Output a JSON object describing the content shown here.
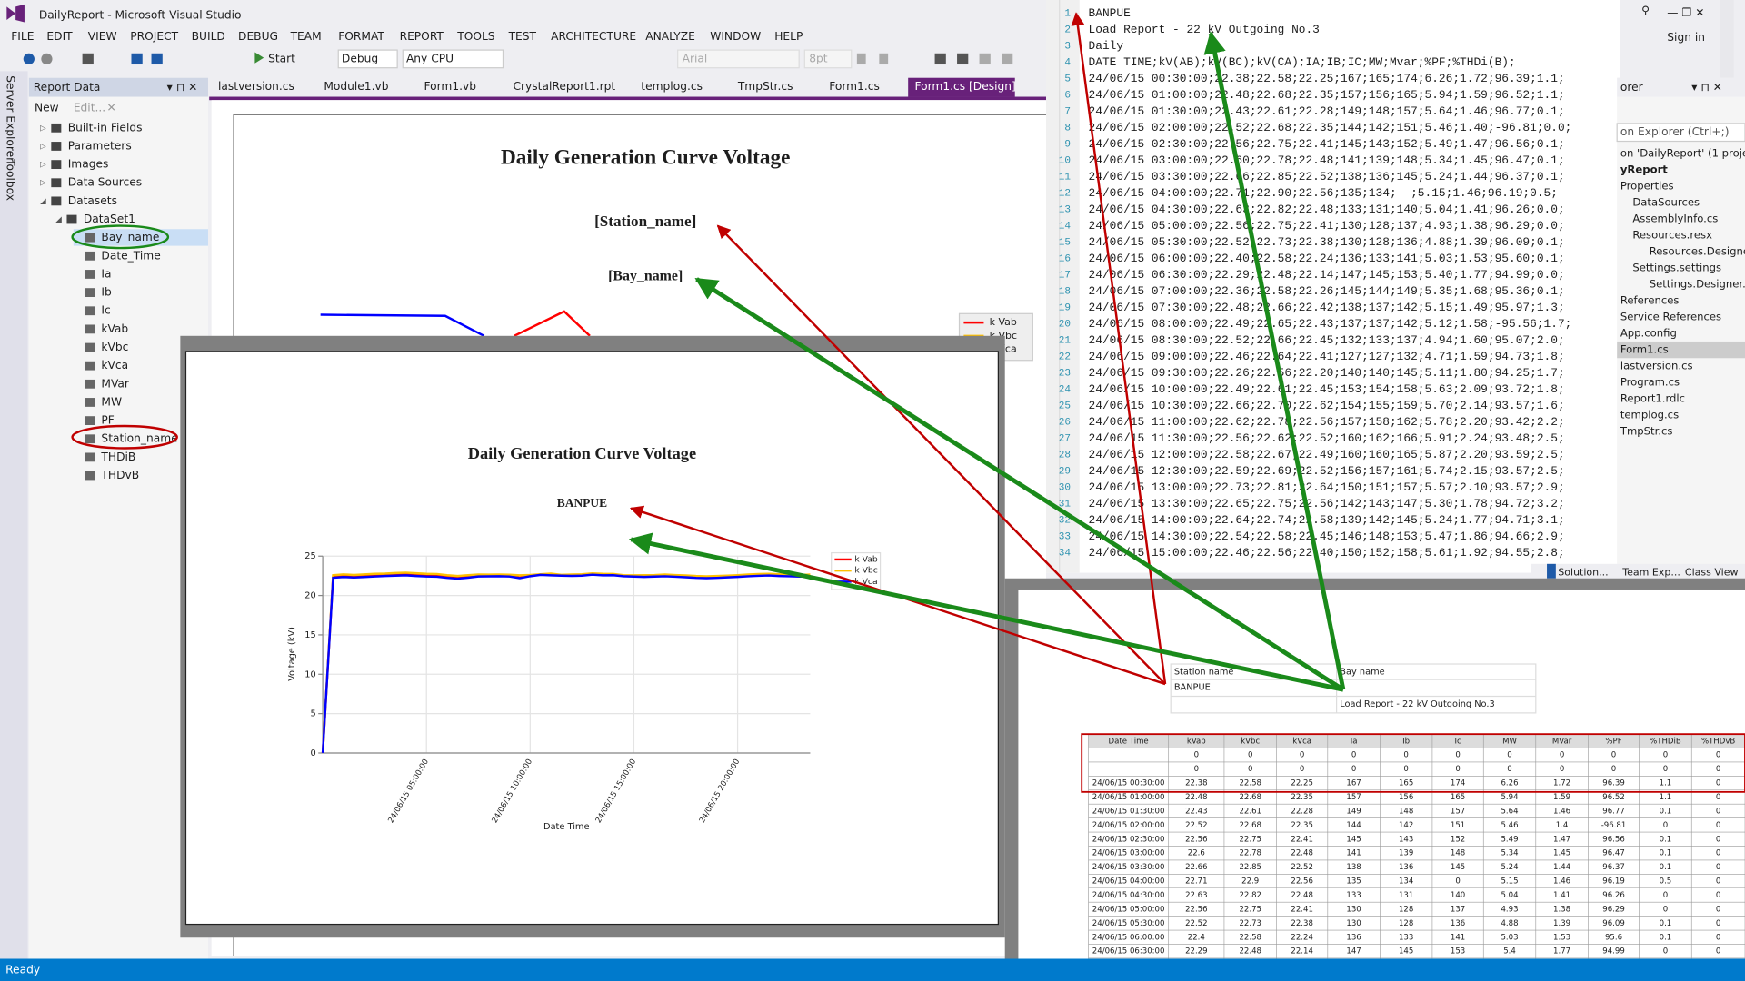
{
  "title_bar": {
    "app_title": "DailyReport - Microsoft Visual Studio",
    "sign_in": "Sign in"
  },
  "menu": [
    "FILE",
    "EDIT",
    "VIEW",
    "PROJECT",
    "BUILD",
    "DEBUG",
    "TEAM",
    "FORMAT",
    "REPORT",
    "TOOLS",
    "TEST",
    "ARCHITECTURE",
    "ANALYZE",
    "WINDOW",
    "HELP"
  ],
  "toolbar": {
    "start": "Start",
    "config": "Debug",
    "platform": "Any CPU",
    "font": "Arial",
    "size": "8pt"
  },
  "side_tabs": [
    "Server Explorer",
    "Toolbox"
  ],
  "report_data": {
    "title": "Report Data",
    "new": "New",
    "edit": "Edit...",
    "items": [
      "Built-in Fields",
      "Parameters",
      "Images",
      "Data Sources",
      "Datasets",
      "DataSet1",
      "Bay_name",
      "Date_Time",
      "Ia",
      "Ib",
      "Ic",
      "kVab",
      "kVbc",
      "kVca",
      "MVar",
      "MW",
      "PF",
      "Station_name",
      "THDiB",
      "THDvB"
    ]
  },
  "tabs": [
    "lastversion.cs",
    "Module1.vb",
    "Form1.vb",
    "CrystalReport1.rpt",
    "templog.cs",
    "TmpStr.cs",
    "Form1.cs",
    "Form1.cs [Design]"
  ],
  "designer": {
    "title": "Daily Generation Curve Voltage",
    "station": "[Station_name]",
    "bay": "[Bay_name]",
    "legend": [
      "k Vab",
      "k Vbc",
      "Vca"
    ]
  },
  "chart_data": {
    "type": "line",
    "title": "Daily Generation Curve Voltage",
    "subtitle": "BANPUE",
    "x_label": "Date Time",
    "y_label": "Voltage (kV)",
    "categories": [
      null,
      null,
      null,
      null,
      null,
      null,
      null,
      null,
      null,
      null,
      "24/06/15 05:00:00",
      null,
      null,
      null,
      null,
      null,
      null,
      null,
      null,
      null,
      "24/06/15 10:00:00",
      null,
      null,
      null,
      null,
      null,
      null,
      null,
      null,
      null,
      "24/06/15 15:00:00",
      null,
      null,
      null,
      null,
      null,
      null,
      null,
      null,
      null,
      "24/06/15 20:00:00",
      null,
      null,
      null,
      null,
      null,
      null,
      null
    ],
    "series": [
      {
        "name": "k Vab",
        "color": "#ff0000",
        "values": [
          0,
          22.38,
          22.48,
          22.43,
          22.52,
          22.56,
          22.6,
          22.66,
          22.71,
          22.63,
          22.56,
          22.52,
          22.4,
          22.29,
          22.36,
          22.48,
          22.49,
          22.52,
          22.46,
          22.26,
          22.49,
          22.66,
          22.62,
          22.56,
          22.58,
          22.59,
          22.73,
          22.65,
          22.64,
          22.54,
          22.46,
          22.42,
          22.45,
          22.5,
          22.44,
          22.38,
          22.3,
          22.26,
          22.3,
          22.36,
          22.42,
          22.5,
          22.56,
          22.6,
          22.55,
          22.5,
          22.46,
          22.5
        ]
      },
      {
        "name": "k Vbc",
        "color": "#ffc000",
        "values": [
          0,
          22.58,
          22.68,
          22.61,
          22.68,
          22.75,
          22.78,
          22.85,
          22.9,
          22.82,
          22.75,
          22.73,
          22.58,
          22.48,
          22.58,
          22.66,
          22.65,
          22.66,
          22.64,
          22.56,
          22.61,
          22.7,
          22.78,
          22.62,
          22.67,
          22.69,
          22.81,
          22.75,
          22.74,
          22.58,
          22.56,
          22.58,
          22.6,
          22.66,
          22.6,
          22.55,
          22.48,
          22.44,
          22.48,
          22.52,
          22.58,
          22.66,
          22.72,
          22.76,
          22.7,
          22.66,
          22.62,
          22.66
        ]
      },
      {
        "name": "k Vca",
        "color": "#0000ff",
        "values": [
          0,
          22.25,
          22.35,
          22.28,
          22.35,
          22.41,
          22.48,
          22.52,
          22.56,
          22.48,
          22.41,
          22.38,
          22.24,
          22.14,
          22.26,
          22.42,
          22.43,
          22.45,
          22.41,
          22.2,
          22.45,
          22.62,
          22.56,
          22.52,
          22.49,
          22.52,
          22.64,
          22.56,
          22.58,
          22.45,
          22.4,
          22.36,
          22.4,
          22.44,
          22.38,
          22.32,
          22.24,
          22.2,
          22.24,
          22.3,
          22.36,
          22.44,
          22.5,
          22.54,
          22.48,
          22.44,
          22.4,
          22.44
        ]
      }
    ],
    "ylim": [
      0,
      25
    ],
    "yticks": [
      0,
      5,
      10,
      15,
      20,
      25
    ],
    "grid": true,
    "legend": "upper right"
  },
  "code": {
    "line_numbers": [
      1,
      2,
      3,
      4,
      5,
      6,
      7,
      8,
      9,
      10,
      11,
      12,
      13,
      14,
      15,
      16,
      17,
      18,
      19,
      20,
      21,
      22,
      23,
      24,
      25,
      26,
      27,
      28,
      29,
      30,
      31,
      32,
      33,
      34
    ],
    "lines": [
      "BANPUE",
      "Load Report - 22 kV Outgoing No.3",
      "Daily",
      "DATE  TIME;kV(AB);kV(BC);kV(CA);IA;IB;IC;MW;Mvar;%PF;%THDi(B);",
      "24/06/15 00:30:00;22.38;22.58;22.25;167;165;174;6.26;1.72;96.39;1.1;",
      "24/06/15 01:00:00;22.48;22.68;22.35;157;156;165;5.94;1.59;96.52;1.1;",
      "24/06/15 01:30:00;22.43;22.61;22.28;149;148;157;5.64;1.46;96.77;0.1;",
      "24/06/15 02:00:00;22.52;22.68;22.35;144;142;151;5.46;1.40;-96.81;0.0;",
      "24/06/15 02:30:00;22.56;22.75;22.41;145;143;152;5.49;1.47;96.56;0.1;",
      "24/06/15 03:00:00;22.60;22.78;22.48;141;139;148;5.34;1.45;96.47;0.1;",
      "24/06/15 03:30:00;22.66;22.85;22.52;138;136;145;5.24;1.44;96.37;0.1;",
      "24/06/15 04:00:00;22.71;22.90;22.56;135;134;--;5.15;1.46;96.19;0.5;",
      "24/06/15 04:30:00;22.63;22.82;22.48;133;131;140;5.04;1.41;96.26;0.0;",
      "24/06/15 05:00:00;22.56;22.75;22.41;130;128;137;4.93;1.38;96.29;0.0;",
      "24/06/15 05:30:00;22.52;22.73;22.38;130;128;136;4.88;1.39;96.09;0.1;",
      "24/06/15 06:00:00;22.40;22.58;22.24;136;133;141;5.03;1.53;95.60;0.1;",
      "24/06/15 06:30:00;22.29;22.48;22.14;147;145;153;5.40;1.77;94.99;0.0;",
      "24/06/15 07:00:00;22.36;22.58;22.26;145;144;149;5.35;1.68;95.36;0.1;",
      "24/06/15 07:30:00;22.48;22.66;22.42;138;137;142;5.15;1.49;95.97;1.3;",
      "24/06/15 08:00:00;22.49;22.65;22.43;137;137;142;5.12;1.58;-95.56;1.7;",
      "24/06/15 08:30:00;22.52;22.66;22.45;132;133;137;4.94;1.60;95.07;2.0;",
      "24/06/15 09:00:00;22.46;22.64;22.41;127;127;132;4.71;1.59;94.73;1.8;",
      "24/06/15 09:30:00;22.26;22.56;22.20;140;140;145;5.11;1.80;94.25;1.7;",
      "24/06/15 10:00:00;22.49;22.61;22.45;153;154;158;5.63;2.09;93.72;1.8;",
      "24/06/15 10:30:00;22.66;22.70;22.62;154;155;159;5.70;2.14;93.57;1.6;",
      "24/06/15 11:00:00;22.62;22.78;22.56;157;158;162;5.78;2.20;93.42;2.2;",
      "24/06/15 11:30:00;22.56;22.62;22.52;160;162;166;5.91;2.24;93.48;2.5;",
      "24/06/15 12:00:00;22.58;22.67;22.49;160;160;165;5.87;2.20;93.59;2.5;",
      "24/06/15 12:30:00;22.59;22.69;22.52;156;157;161;5.74;2.15;93.57;2.5;",
      "24/06/15 13:00:00;22.73;22.81;22.64;150;151;157;5.57;2.10;93.57;2.9;",
      "24/06/15 13:30:00;22.65;22.75;22.56;142;143;147;5.30;1.78;94.72;3.2;",
      "24/06/15 14:00:00;22.64;22.74;22.58;139;142;145;5.24;1.77;94.71;3.1;",
      "24/06/15 14:30:00;22.54;22.58;22.45;146;148;153;5.47;1.86;94.66;2.9;",
      "24/06/15 15:00:00;22.46;22.56;22.40;150;152;158;5.61;1.92;94.55;2.8;"
    ]
  },
  "solution_explorer": {
    "header": "orer",
    "search": "on Explorer (Ctrl+;)",
    "items": [
      "on 'DailyReport' (1 project)",
      "yReport",
      "Properties",
      "DataSources",
      "AssemblyInfo.cs",
      "Resources.resx",
      "Resources.Designe",
      "Settings.settings",
      "Settings.Designer.c",
      "References",
      "Service References",
      "App.config",
      "Form1.cs",
      "lastversion.cs",
      "Program.cs",
      "Report1.rdlc",
      "templog.cs",
      "TmpStr.cs"
    ],
    "bottom_tabs": [
      "Solution...",
      "Team Exp...",
      "Class View"
    ]
  },
  "report_info": {
    "station_label": "Station name",
    "station": "BANPUE",
    "bay_label": "Bay name",
    "bay": "Load Report - 22 kV Outgoing No.3"
  },
  "table": {
    "headers": [
      "Date Time",
      "kVab",
      "kVbc",
      "kVca",
      "Ia",
      "Ib",
      "Ic",
      "MW",
      "MVar",
      "%PF",
      "%THDiB",
      "%THDvB"
    ],
    "rows": [
      [
        "0",
        "0",
        "0",
        "0",
        "0",
        "0",
        "0",
        "0",
        "0",
        "0",
        "0"
      ],
      [
        "0",
        "0",
        "0",
        "0",
        "0",
        "0",
        "0",
        "0",
        "0",
        "0",
        "0"
      ],
      [
        "24/06/15 00:30:00",
        "22.38",
        "22.58",
        "22.25",
        "167",
        "165",
        "174",
        "6.26",
        "1.72",
        "96.39",
        "1.1",
        "0"
      ],
      [
        "24/06/15 01:00:00",
        "22.48",
        "22.68",
        "22.35",
        "157",
        "156",
        "165",
        "5.94",
        "1.59",
        "96.52",
        "1.1",
        "0"
      ],
      [
        "24/06/15 01:30:00",
        "22.43",
        "22.61",
        "22.28",
        "149",
        "148",
        "157",
        "5.64",
        "1.46",
        "96.77",
        "0.1",
        "0"
      ],
      [
        "24/06/15 02:00:00",
        "22.52",
        "22.68",
        "22.35",
        "144",
        "142",
        "151",
        "5.46",
        "1.4",
        "-96.81",
        "0",
        "0"
      ],
      [
        "24/06/15 02:30:00",
        "22.56",
        "22.75",
        "22.41",
        "145",
        "143",
        "152",
        "5.49",
        "1.47",
        "96.56",
        "0.1",
        "0"
      ],
      [
        "24/06/15 03:00:00",
        "22.6",
        "22.78",
        "22.48",
        "141",
        "139",
        "148",
        "5.34",
        "1.45",
        "96.47",
        "0.1",
        "0"
      ],
      [
        "24/06/15 03:30:00",
        "22.66",
        "22.85",
        "22.52",
        "138",
        "136",
        "145",
        "5.24",
        "1.44",
        "96.37",
        "0.1",
        "0"
      ],
      [
        "24/06/15 04:00:00",
        "22.71",
        "22.9",
        "22.56",
        "135",
        "134",
        "0",
        "5.15",
        "1.46",
        "96.19",
        "0.5",
        "0"
      ],
      [
        "24/06/15 04:30:00",
        "22.63",
        "22.82",
        "22.48",
        "133",
        "131",
        "140",
        "5.04",
        "1.41",
        "96.26",
        "0",
        "0"
      ],
      [
        "24/06/15 05:00:00",
        "22.56",
        "22.75",
        "22.41",
        "130",
        "128",
        "137",
        "4.93",
        "1.38",
        "96.29",
        "0",
        "0"
      ],
      [
        "24/06/15 05:30:00",
        "22.52",
        "22.73",
        "22.38",
        "130",
        "128",
        "136",
        "4.88",
        "1.39",
        "96.09",
        "0.1",
        "0"
      ],
      [
        "24/06/15 06:00:00",
        "22.4",
        "22.58",
        "22.24",
        "136",
        "133",
        "141",
        "5.03",
        "1.53",
        "95.6",
        "0.1",
        "0"
      ],
      [
        "24/06/15 06:30:00",
        "22.29",
        "22.48",
        "22.14",
        "147",
        "145",
        "153",
        "5.4",
        "1.77",
        "94.99",
        "0",
        "0"
      ],
      [
        "24/06/15 07:00:00",
        "22.36",
        "22.58",
        "22.26",
        "145",
        "144",
        "149",
        "5.35",
        "1.68",
        "95.36",
        "0.1",
        "0"
      ],
      [
        "24/06/15 07:30:00",
        "22.48",
        "22.66",
        "22.42",
        "138",
        "137",
        "142",
        "5.15",
        "1.49",
        "95.97",
        "1.3",
        "0"
      ]
    ]
  },
  "status": "Ready"
}
